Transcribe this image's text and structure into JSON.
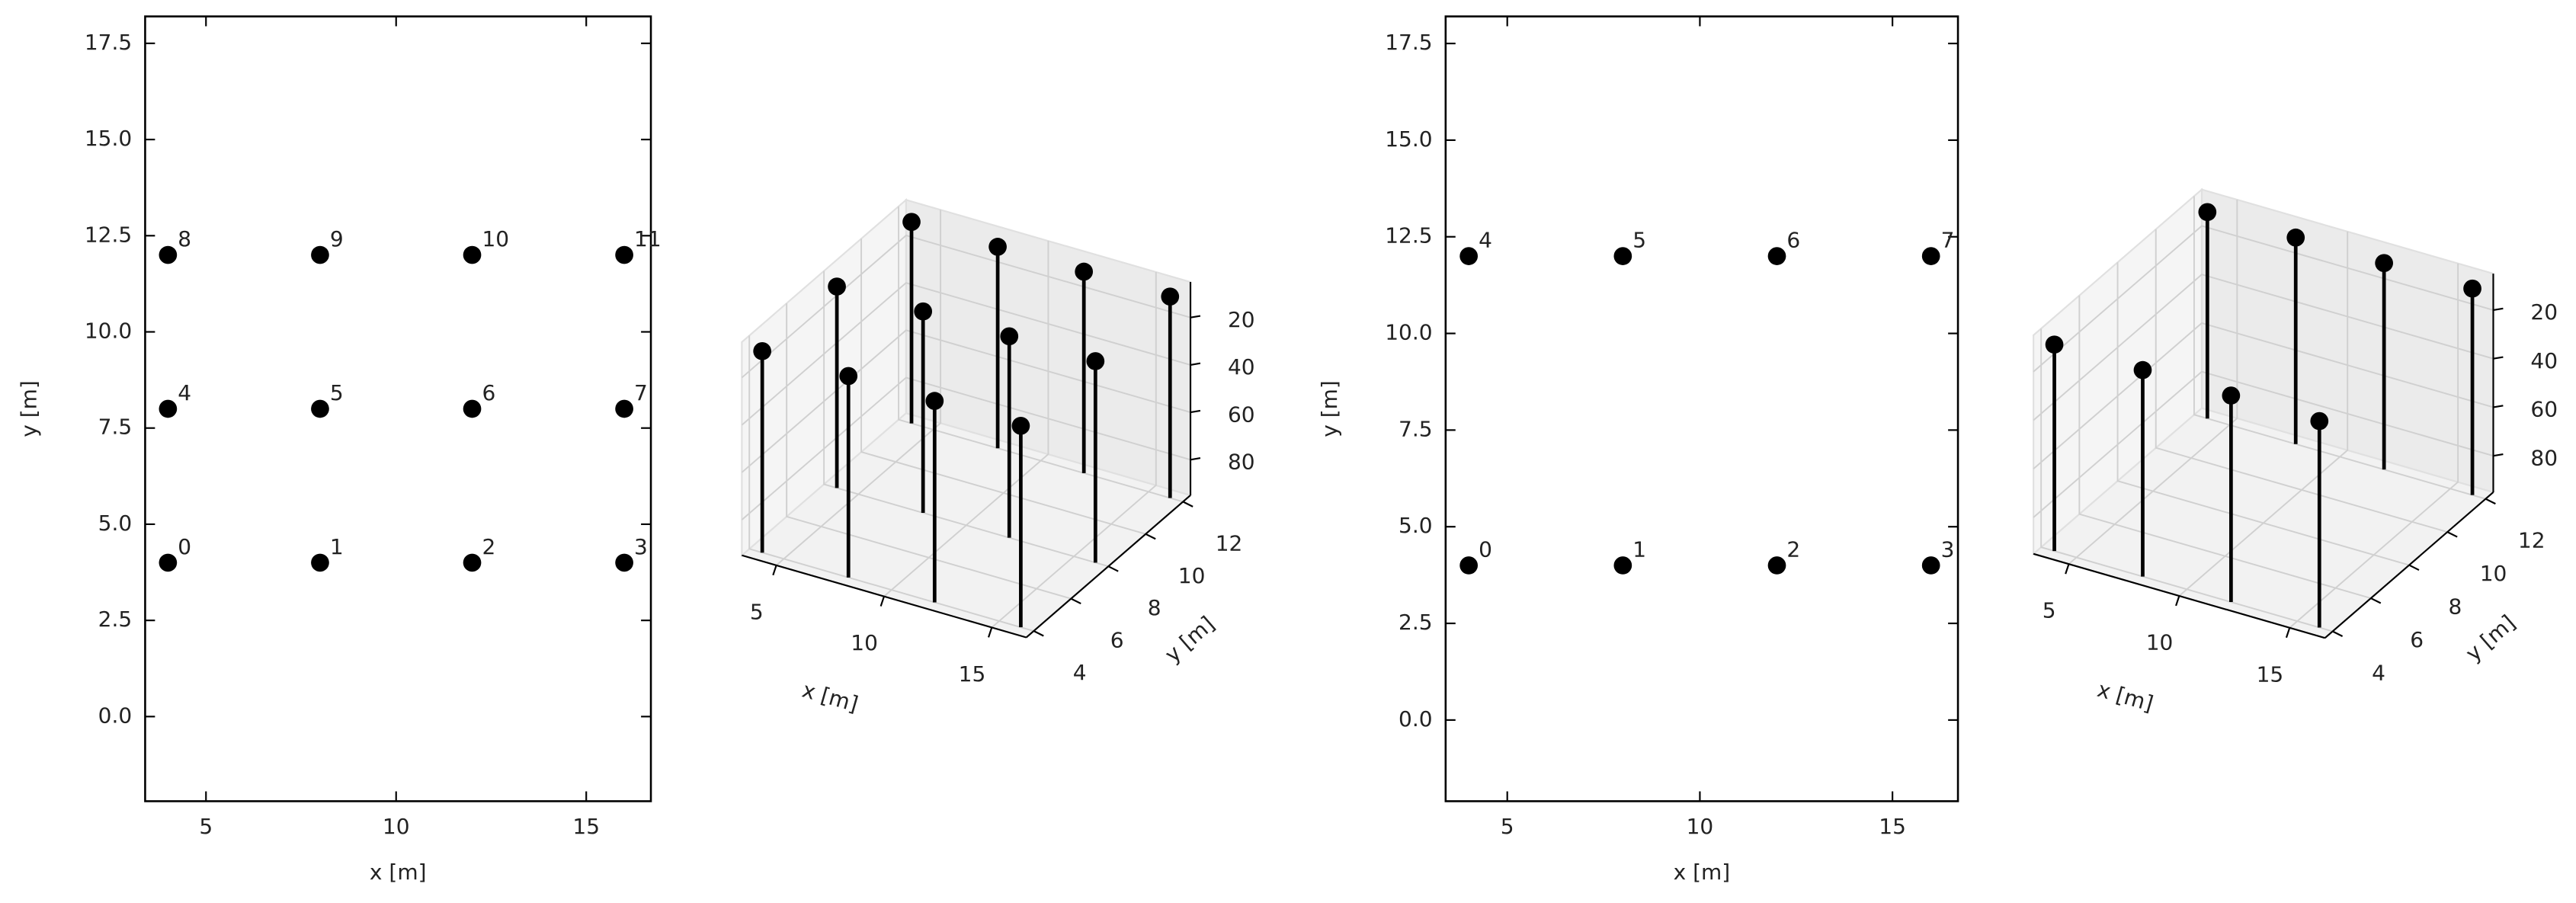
{
  "chart_data": [
    {
      "type": "scatter",
      "xlabel": "x [m]",
      "ylabel": "y [m]",
      "x": [
        4,
        8,
        12,
        16,
        4,
        8,
        12,
        16,
        4,
        8,
        12,
        16
      ],
      "y": [
        4,
        4,
        4,
        4,
        8,
        8,
        8,
        8,
        12,
        12,
        12,
        12
      ],
      "labels": [
        "0",
        "1",
        "2",
        "3",
        "4",
        "5",
        "6",
        "7",
        "8",
        "9",
        "10",
        "11"
      ],
      "color": "#000000",
      "xlim": [
        3.4,
        16.7
      ],
      "xticks": [
        5,
        10,
        15
      ],
      "ylim": [
        -2.2,
        18.2
      ],
      "yticks": [
        {
          "value": 0,
          "label": "0.0"
        },
        2.5,
        {
          "value": 5,
          "label": "5.0"
        },
        7.5,
        {
          "value": 10,
          "label": "10.0"
        },
        12.5,
        {
          "value": 15,
          "label": "15.0"
        },
        17.5
      ]
    },
    {
      "type": "scatter3d",
      "xlabel": "x [m]",
      "ylabel": "y [m]",
      "x": [
        4,
        8,
        12,
        16,
        4,
        8,
        12,
        16,
        4,
        8,
        12,
        16
      ],
      "y": [
        4,
        4,
        4,
        4,
        8,
        8,
        8,
        8,
        12,
        12,
        12,
        12
      ],
      "z": [
        10,
        10,
        10,
        10,
        10,
        10,
        10,
        10,
        10,
        10,
        10,
        10
      ],
      "color": "#000000",
      "xlim": [
        3.4,
        16.6
      ],
      "xticks": [
        5,
        10,
        15
      ],
      "ylim": [
        3.6,
        12.4
      ],
      "yticks": [
        4,
        6,
        8,
        10,
        12
      ],
      "zlim": [
        95,
        5
      ],
      "zticks": [
        20,
        40,
        60,
        80
      ]
    },
    {
      "type": "scatter",
      "xlabel": "x [m]",
      "ylabel": "y [m]",
      "x": [
        4,
        8,
        12,
        16,
        4,
        8,
        12,
        16
      ],
      "y": [
        4,
        4,
        4,
        4,
        12,
        12,
        12,
        12
      ],
      "labels": [
        "0",
        "1",
        "2",
        "3",
        "4",
        "5",
        "6",
        "7"
      ],
      "color": "#000000",
      "xlim": [
        3.4,
        16.7
      ],
      "xticks": [
        5,
        10,
        15
      ],
      "ylim": [
        -2.1,
        18.2
      ],
      "yticks": [
        {
          "value": 0,
          "label": "0.0"
        },
        2.5,
        {
          "value": 5,
          "label": "5.0"
        },
        7.5,
        {
          "value": 10,
          "label": "10.0"
        },
        12.5,
        {
          "value": 15,
          "label": "15.0"
        },
        17.5
      ]
    },
    {
      "type": "scatter3d",
      "xlabel": "x [m]",
      "ylabel": "y [m]",
      "x": [
        4,
        8,
        12,
        16,
        4,
        8,
        12,
        16
      ],
      "y": [
        4,
        4,
        4,
        4,
        12,
        12,
        12,
        12
      ],
      "z": [
        10,
        10,
        10,
        10,
        10,
        10,
        10,
        10
      ],
      "color": "#000000",
      "xlim": [
        3.4,
        16.6
      ],
      "xticks": [
        5,
        10,
        15
      ],
      "ylim": [
        3.6,
        12.4
      ],
      "yticks": [
        4,
        6,
        8,
        10,
        12
      ],
      "zlim": [
        95,
        5
      ],
      "zticks": [
        20,
        40,
        60,
        80
      ]
    }
  ]
}
